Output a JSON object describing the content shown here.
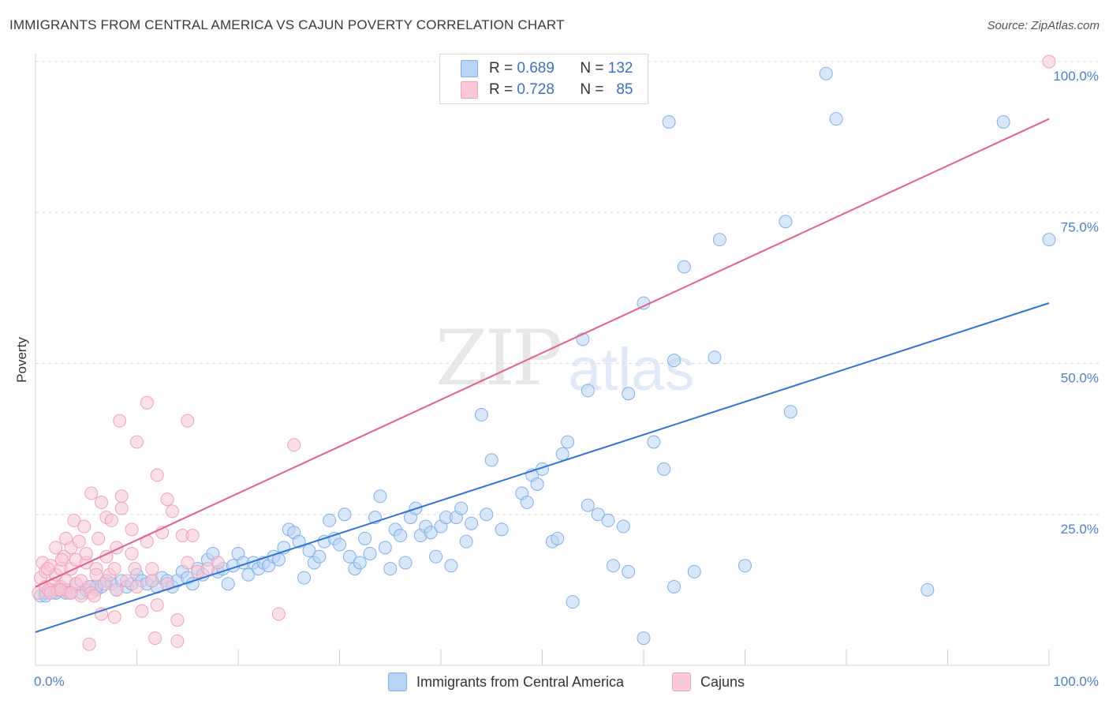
{
  "header": {
    "title": "IMMIGRANTS FROM CENTRAL AMERICA VS CAJUN POVERTY CORRELATION CHART",
    "source": "Source: ZipAtlas.com"
  },
  "watermark": {
    "zip": "ZIP",
    "atlas": "atlas"
  },
  "legend": {
    "r_label": "R =",
    "n_label": "N =",
    "rows": [
      {
        "r": "0.689",
        "n": "132",
        "color": "#7fb0ea",
        "fill": "#b9d4f5"
      },
      {
        "r": "0.728",
        "n": "85",
        "color": "#f0a0bb",
        "fill": "#f9c7d6"
      }
    ]
  },
  "chart_data": {
    "type": "scatter",
    "title": "IMMIGRANTS FROM CENTRAL AMERICA VS CAJUN POVERTY CORRELATION CHART",
    "xlabel": "",
    "ylabel": "Poverty",
    "xlim": [
      0,
      100
    ],
    "ylim": [
      0,
      100
    ],
    "x_tick_labels": [
      "0.0%",
      "100.0%"
    ],
    "y_tick_labels": [
      "25.0%",
      "50.0%",
      "75.0%",
      "100.0%"
    ],
    "y_ticks": [
      25,
      50,
      75,
      100
    ],
    "grid": true,
    "series": [
      {
        "name": "Immigrants from Central America",
        "stroke": "#7fb0ea",
        "fill": "#b9d4f5",
        "line_color": "#2f72d6",
        "trend": {
          "x0": 0,
          "y0": 5.5,
          "x1": 100,
          "y1": 60
        },
        "points": [
          [
            0.5,
            11.5
          ],
          [
            1,
            12
          ],
          [
            1.5,
            12.5
          ],
          [
            2,
            12
          ],
          [
            2.5,
            13
          ],
          [
            3,
            12.5
          ],
          [
            3.5,
            12
          ],
          [
            4,
            13.5
          ],
          [
            4.5,
            12
          ],
          [
            5,
            12.5
          ],
          [
            5.5,
            13
          ],
          [
            6,
            12.5
          ],
          [
            6.5,
            13
          ],
          [
            7,
            14
          ],
          [
            7.5,
            13.5
          ],
          [
            8,
            12.5
          ],
          [
            8.5,
            14
          ],
          [
            9,
            13
          ],
          [
            9.5,
            13.5
          ],
          [
            10,
            15
          ],
          [
            10.5,
            14
          ],
          [
            11,
            13.5
          ],
          [
            11.5,
            14
          ],
          [
            12,
            13
          ],
          [
            12.5,
            14.5
          ],
          [
            13,
            14
          ],
          [
            13.5,
            13
          ],
          [
            14,
            14
          ],
          [
            14.5,
            15.5
          ],
          [
            15,
            14.5
          ],
          [
            15.5,
            13.5
          ],
          [
            16,
            16
          ],
          [
            16.5,
            15
          ],
          [
            17,
            17.5
          ],
          [
            17.5,
            18.5
          ],
          [
            18,
            15.5
          ],
          [
            18.5,
            16
          ],
          [
            19,
            13.5
          ],
          [
            19.5,
            16.5
          ],
          [
            20,
            18.5
          ],
          [
            20.5,
            17
          ],
          [
            21,
            15
          ],
          [
            21.5,
            17
          ],
          [
            22,
            16
          ],
          [
            22.5,
            17
          ],
          [
            23,
            16.5
          ],
          [
            23.5,
            18
          ],
          [
            24,
            17.5
          ],
          [
            24.5,
            19.5
          ],
          [
            25,
            22.5
          ],
          [
            25.5,
            22
          ],
          [
            26,
            20.5
          ],
          [
            26.5,
            14.5
          ],
          [
            27,
            19
          ],
          [
            27.5,
            17
          ],
          [
            28,
            18
          ],
          [
            28.5,
            20.5
          ],
          [
            29,
            24
          ],
          [
            29.5,
            21
          ],
          [
            30,
            20
          ],
          [
            30.5,
            25
          ],
          [
            31,
            18
          ],
          [
            31.5,
            16
          ],
          [
            32,
            17
          ],
          [
            32.5,
            21
          ],
          [
            33,
            18.5
          ],
          [
            33.5,
            24.5
          ],
          [
            34,
            28
          ],
          [
            34.5,
            19.5
          ],
          [
            35,
            16
          ],
          [
            35.5,
            22.5
          ],
          [
            36,
            21.5
          ],
          [
            36.5,
            17
          ],
          [
            37,
            24.5
          ],
          [
            37.5,
            26
          ],
          [
            38,
            21.5
          ],
          [
            38.5,
            23
          ],
          [
            39,
            22
          ],
          [
            39.5,
            18
          ],
          [
            40,
            23
          ],
          [
            40.5,
            24.5
          ],
          [
            41,
            16.5
          ],
          [
            41.5,
            24.5
          ],
          [
            42,
            26
          ],
          [
            42.5,
            20.5
          ],
          [
            43,
            23.5
          ],
          [
            44,
            41.5
          ],
          [
            44.5,
            25
          ],
          [
            45,
            34
          ],
          [
            46,
            22.5
          ],
          [
            48,
            28.5
          ],
          [
            48.5,
            27
          ],
          [
            49,
            31.5
          ],
          [
            49.5,
            30
          ],
          [
            50,
            32.5
          ],
          [
            51,
            20.5
          ],
          [
            51.5,
            21
          ],
          [
            52,
            35
          ],
          [
            52.5,
            37
          ],
          [
            53,
            10.5
          ],
          [
            54,
            54
          ],
          [
            54.5,
            26.5
          ],
          [
            54.5,
            45.5
          ],
          [
            55.5,
            25
          ],
          [
            56.5,
            24
          ],
          [
            57,
            16.5
          ],
          [
            58,
            23
          ],
          [
            58.5,
            45
          ],
          [
            58.5,
            15.5
          ],
          [
            60,
            4.5
          ],
          [
            60,
            60
          ],
          [
            61,
            37
          ],
          [
            62,
            32.5
          ],
          [
            62.5,
            90
          ],
          [
            63,
            13
          ],
          [
            63,
            50.5
          ],
          [
            64,
            66
          ],
          [
            65,
            15.5
          ],
          [
            67,
            51
          ],
          [
            67.5,
            70.5
          ],
          [
            70,
            16.5
          ],
          [
            74,
            73.5
          ],
          [
            74.5,
            42
          ],
          [
            78,
            98
          ],
          [
            79,
            90.5
          ],
          [
            88,
            12.5
          ],
          [
            95.5,
            90
          ],
          [
            100,
            70.5
          ],
          [
            2,
            12
          ],
          [
            6,
            13
          ],
          [
            3,
            12
          ],
          [
            1,
            11.5
          ]
        ]
      },
      {
        "name": "Cajuns",
        "stroke": "#f0a0bb",
        "fill": "#f9c7d6",
        "line_color": "#e2608a",
        "trend": {
          "x0": 0,
          "y0": 13,
          "x1": 100,
          "y1": 90.5
        },
        "points": [
          [
            0.3,
            12
          ],
          [
            0.5,
            14.5
          ],
          [
            0.7,
            17
          ],
          [
            1,
            13
          ],
          [
            1,
            15.5
          ],
          [
            1.3,
            12.5
          ],
          [
            1.5,
            16.5
          ],
          [
            1.8,
            13.5
          ],
          [
            2,
            19.5
          ],
          [
            2,
            15
          ],
          [
            2.2,
            12.5
          ],
          [
            2.5,
            16
          ],
          [
            2.5,
            13
          ],
          [
            2.8,
            18
          ],
          [
            3,
            21
          ],
          [
            3,
            14
          ],
          [
            3.3,
            12
          ],
          [
            3.5,
            16
          ],
          [
            3.5,
            19.5
          ],
          [
            3.8,
            24
          ],
          [
            4,
            17.5
          ],
          [
            4,
            13.5
          ],
          [
            4.3,
            20.5
          ],
          [
            4.5,
            14
          ],
          [
            4.5,
            11.5
          ],
          [
            4.8,
            23
          ],
          [
            5,
            17
          ],
          [
            5,
            18.5
          ],
          [
            5.3,
            13
          ],
          [
            5.5,
            12
          ],
          [
            5.5,
            28.5
          ],
          [
            5.8,
            11.5
          ],
          [
            6,
            16
          ],
          [
            6,
            15
          ],
          [
            6.2,
            21
          ],
          [
            6.5,
            27
          ],
          [
            6.8,
            13.5
          ],
          [
            7,
            18
          ],
          [
            7,
            24.5
          ],
          [
            7.3,
            15
          ],
          [
            7.5,
            24
          ],
          [
            7.8,
            16
          ],
          [
            8,
            12.5
          ],
          [
            8,
            19.5
          ],
          [
            8.3,
            40.5
          ],
          [
            8.5,
            28
          ],
          [
            8.5,
            26
          ],
          [
            9,
            14
          ],
          [
            9.5,
            18.5
          ],
          [
            9.5,
            22.5
          ],
          [
            10,
            37
          ],
          [
            10,
            13
          ],
          [
            10.5,
            9
          ],
          [
            11,
            43.5
          ],
          [
            11,
            20.5
          ],
          [
            11.5,
            14
          ],
          [
            11.5,
            16
          ],
          [
            12,
            10
          ],
          [
            12,
            31.5
          ],
          [
            12.5,
            22
          ],
          [
            13,
            27.5
          ],
          [
            13,
            13.5
          ],
          [
            13.5,
            25.5
          ],
          [
            14,
            7.5
          ],
          [
            14.5,
            21.5
          ],
          [
            15,
            40.5
          ],
          [
            15,
            17
          ],
          [
            1.5,
            12
          ],
          [
            2.5,
            12.5
          ],
          [
            3.5,
            12
          ],
          [
            5.3,
            3.5
          ],
          [
            6.5,
            8.5
          ],
          [
            7.8,
            8
          ],
          [
            9.8,
            16
          ],
          [
            11.8,
            4.5
          ],
          [
            14,
            4
          ],
          [
            15.5,
            21.5
          ],
          [
            16,
            15.5
          ],
          [
            17,
            16
          ],
          [
            18,
            17
          ],
          [
            24,
            8.5
          ],
          [
            25.5,
            36.5
          ],
          [
            1.2,
            16
          ],
          [
            2.6,
            17.5
          ],
          [
            100,
            100
          ]
        ]
      }
    ]
  },
  "bottom_legend": {
    "items": [
      {
        "label": "Immigrants from Central America",
        "stroke": "#7fb0ea",
        "fill": "#b9d4f5"
      },
      {
        "label": "Cajuns",
        "stroke": "#f0a0bb",
        "fill": "#f9c7d6"
      }
    ]
  }
}
